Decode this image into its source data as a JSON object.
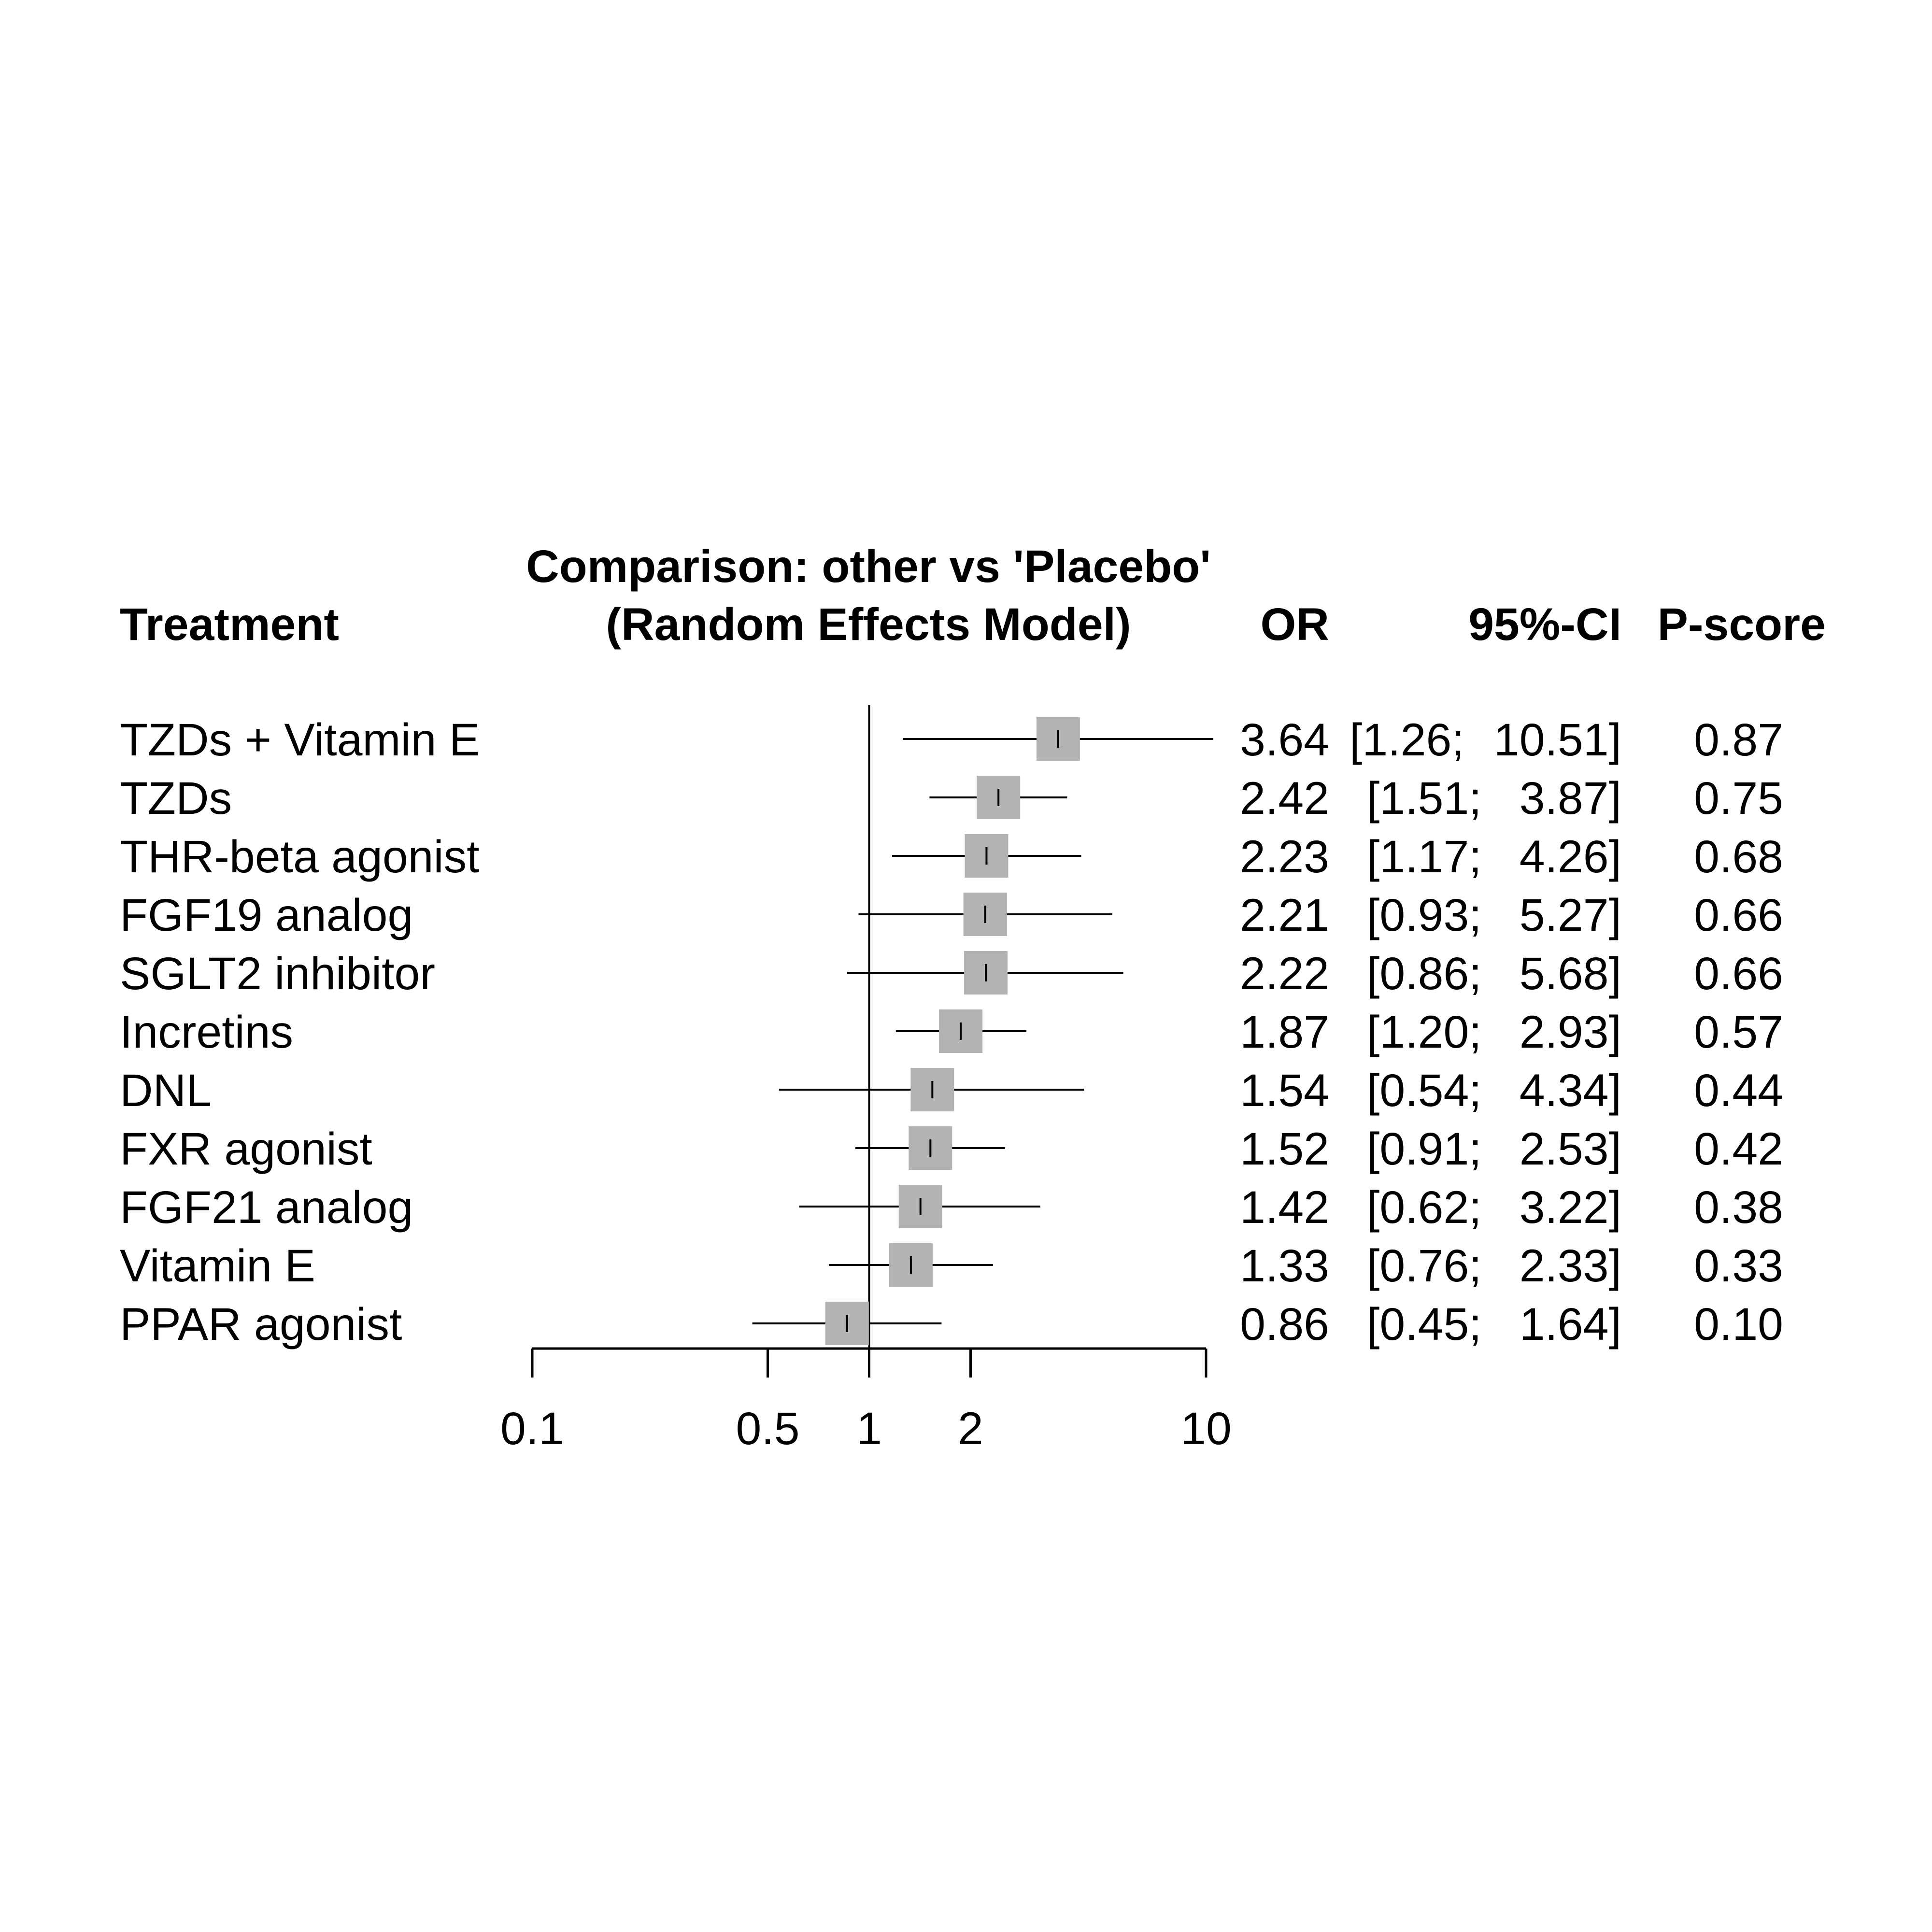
{
  "headers": {
    "treatment": "Treatment",
    "comparison_line1": "Comparison: other vs 'Placebo'",
    "comparison_line2": "(Random Effects Model)",
    "or": "OR",
    "ci": "95%-CI",
    "pscore": "P-score"
  },
  "colors": {
    "box": "#b3b3b3",
    "line": "#000000"
  },
  "chart_data": {
    "type": "forest",
    "x_scale": "log",
    "xlim": [
      0.1,
      10
    ],
    "x_ticks": [
      0.1,
      0.5,
      1,
      2,
      10
    ],
    "x_tick_labels": [
      "0.1",
      "0.5",
      "1",
      "2",
      "10"
    ],
    "reference_line": 1,
    "rows": [
      {
        "treatment": "TZDs + Vitamin E",
        "or": 3.64,
        "lower": 1.26,
        "upper": 10.51,
        "or_text": "3.64",
        "lower_text": "[1.26;",
        "upper_text": "10.51]",
        "pscore": 0.87,
        "pscore_text": "0.87"
      },
      {
        "treatment": "TZDs",
        "or": 2.42,
        "lower": 1.51,
        "upper": 3.87,
        "or_text": "2.42",
        "lower_text": "[1.51;",
        "upper_text": "3.87]",
        "pscore": 0.75,
        "pscore_text": "0.75"
      },
      {
        "treatment": "THR-beta agonist",
        "or": 2.23,
        "lower": 1.17,
        "upper": 4.26,
        "or_text": "2.23",
        "lower_text": "[1.17;",
        "upper_text": "4.26]",
        "pscore": 0.68,
        "pscore_text": "0.68"
      },
      {
        "treatment": "FGF19 analog",
        "or": 2.21,
        "lower": 0.93,
        "upper": 5.27,
        "or_text": "2.21",
        "lower_text": "[0.93;",
        "upper_text": "5.27]",
        "pscore": 0.66,
        "pscore_text": "0.66"
      },
      {
        "treatment": "SGLT2 inhibitor",
        "or": 2.22,
        "lower": 0.86,
        "upper": 5.68,
        "or_text": "2.22",
        "lower_text": "[0.86;",
        "upper_text": "5.68]",
        "pscore": 0.66,
        "pscore_text": "0.66"
      },
      {
        "treatment": "Incretins",
        "or": 1.87,
        "lower": 1.2,
        "upper": 2.93,
        "or_text": "1.87",
        "lower_text": "[1.20;",
        "upper_text": "2.93]",
        "pscore": 0.57,
        "pscore_text": "0.57"
      },
      {
        "treatment": "DNL",
        "or": 1.54,
        "lower": 0.54,
        "upper": 4.34,
        "or_text": "1.54",
        "lower_text": "[0.54;",
        "upper_text": "4.34]",
        "pscore": 0.44,
        "pscore_text": "0.44"
      },
      {
        "treatment": "FXR agonist",
        "or": 1.52,
        "lower": 0.91,
        "upper": 2.53,
        "or_text": "1.52",
        "lower_text": "[0.91;",
        "upper_text": "2.53]",
        "pscore": 0.42,
        "pscore_text": "0.42"
      },
      {
        "treatment": "FGF21 analog",
        "or": 1.42,
        "lower": 0.62,
        "upper": 3.22,
        "or_text": "1.42",
        "lower_text": "[0.62;",
        "upper_text": "3.22]",
        "pscore": 0.38,
        "pscore_text": "0.38"
      },
      {
        "treatment": "Vitamin E",
        "or": 1.33,
        "lower": 0.76,
        "upper": 2.33,
        "or_text": "1.33",
        "lower_text": "[0.76;",
        "upper_text": "2.33]",
        "pscore": 0.33,
        "pscore_text": "0.33"
      },
      {
        "treatment": "PPAR agonist",
        "or": 0.86,
        "lower": 0.45,
        "upper": 1.64,
        "or_text": "0.86",
        "lower_text": "[0.45;",
        "upper_text": "1.64]",
        "pscore": 0.1,
        "pscore_text": "0.10"
      }
    ]
  }
}
